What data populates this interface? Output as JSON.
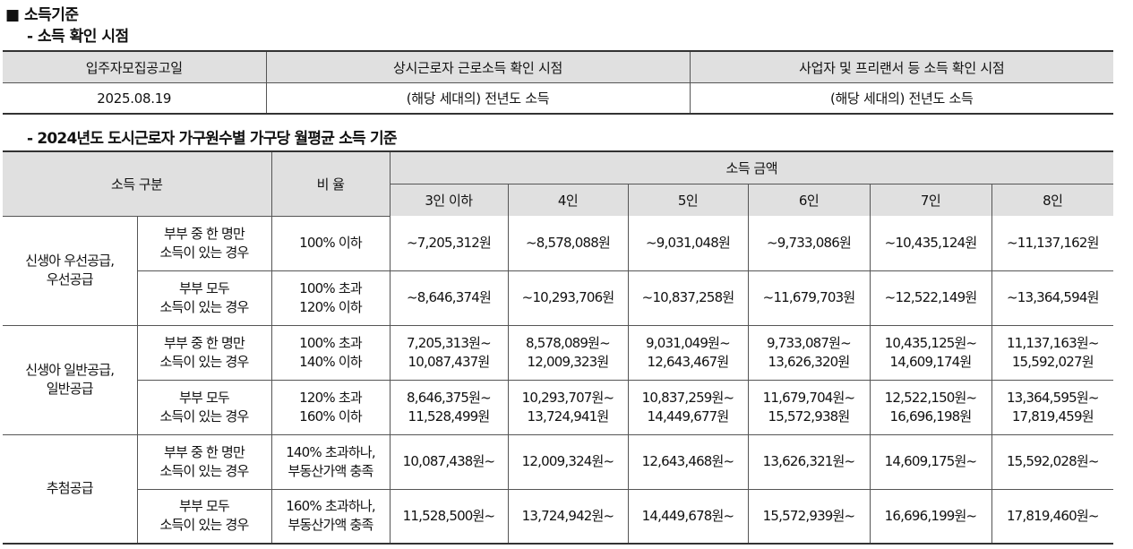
{
  "section_title": "■ 소득기준",
  "sub1_title": "- 소득 확인 시점",
  "check_table": {
    "headers": [
      "입주자모집공고일",
      "상시근로자 근로소득 확인 시점",
      "사업자 및 프리랜서 등 소득 확인 시점"
    ],
    "row": [
      "2025.08.19",
      "(해당 세대의) 전년도 소득",
      "(해당 세대의) 전년도 소득"
    ]
  },
  "sub2_title": "- 2024년도 도시근로자 가구원수별 가구당 월평균 소득 기준",
  "income_table": {
    "h_category": "소득 구분",
    "h_ratio": "비 율",
    "h_amount": "소득 금액",
    "h_sizes": [
      "3인 이하",
      "4인",
      "5인",
      "6인",
      "7인",
      "8인"
    ],
    "groups": [
      {
        "label": [
          "신생아 우선공급,",
          "우선공급"
        ],
        "rows": [
          {
            "type": [
              "부부 중 한 명만",
              "소득이 있는 경우"
            ],
            "ratio": [
              "100% 이하"
            ],
            "values": [
              [
                "~7,205,312원"
              ],
              [
                "~8,578,088원"
              ],
              [
                "~9,031,048원"
              ],
              [
                "~9,733,086원"
              ],
              [
                "~10,435,124원"
              ],
              [
                "~11,137,162원"
              ]
            ]
          },
          {
            "type": [
              "부부 모두",
              "소득이 있는 경우"
            ],
            "ratio": [
              "100% 초과",
              "120% 이하"
            ],
            "values": [
              [
                "~8,646,374원"
              ],
              [
                "~10,293,706원"
              ],
              [
                "~10,837,258원"
              ],
              [
                "~11,679,703원"
              ],
              [
                "~12,522,149원"
              ],
              [
                "~13,364,594원"
              ]
            ]
          }
        ]
      },
      {
        "label": [
          "신생아 일반공급,",
          "일반공급"
        ],
        "rows": [
          {
            "type": [
              "부부 중 한 명만",
              "소득이 있는 경우"
            ],
            "ratio": [
              "100% 초과",
              "140% 이하"
            ],
            "values": [
              [
                "7,205,313원~",
                "10,087,437원"
              ],
              [
                "8,578,089원~",
                "12,009,323원"
              ],
              [
                "9,031,049원~",
                "12,643,467원"
              ],
              [
                "9,733,087원~",
                "13,626,320원"
              ],
              [
                "10,435,125원~",
                "14,609,174원"
              ],
              [
                "11,137,163원~",
                "15,592,027원"
              ]
            ]
          },
          {
            "type": [
              "부부 모두",
              "소득이 있는 경우"
            ],
            "ratio": [
              "120% 초과",
              "160% 이하"
            ],
            "values": [
              [
                "8,646,375원~",
                "11,528,499원"
              ],
              [
                "10,293,707원~",
                "13,724,941원"
              ],
              [
                "10,837,259원~",
                "14,449,677원"
              ],
              [
                "11,679,704원~",
                "15,572,938원"
              ],
              [
                "12,522,150원~",
                "16,696,198원"
              ],
              [
                "13,364,595원~",
                "17,819,459원"
              ]
            ]
          }
        ]
      },
      {
        "label": [
          "추첨공급"
        ],
        "rows": [
          {
            "type": [
              "부부 중 한 명만",
              "소득이 있는 경우"
            ],
            "ratio": [
              "140% 초과하나,",
              "부동산가액 충족"
            ],
            "values": [
              [
                "10,087,438원~"
              ],
              [
                "12,009,324원~"
              ],
              [
                "12,643,468원~"
              ],
              [
                "13,626,321원~"
              ],
              [
                "14,609,175원~"
              ],
              [
                "15,592,028원~"
              ]
            ]
          },
          {
            "type": [
              "부부 모두",
              "소득이 있는 경우"
            ],
            "ratio": [
              "160% 초과하나,",
              "부동산가액 충족"
            ],
            "values": [
              [
                "11,528,500원~"
              ],
              [
                "13,724,942원~"
              ],
              [
                "14,449,678원~"
              ],
              [
                "15,572,939원~"
              ],
              [
                "16,696,199원~"
              ],
              [
                "17,819,460원~"
              ]
            ]
          }
        ]
      }
    ]
  }
}
